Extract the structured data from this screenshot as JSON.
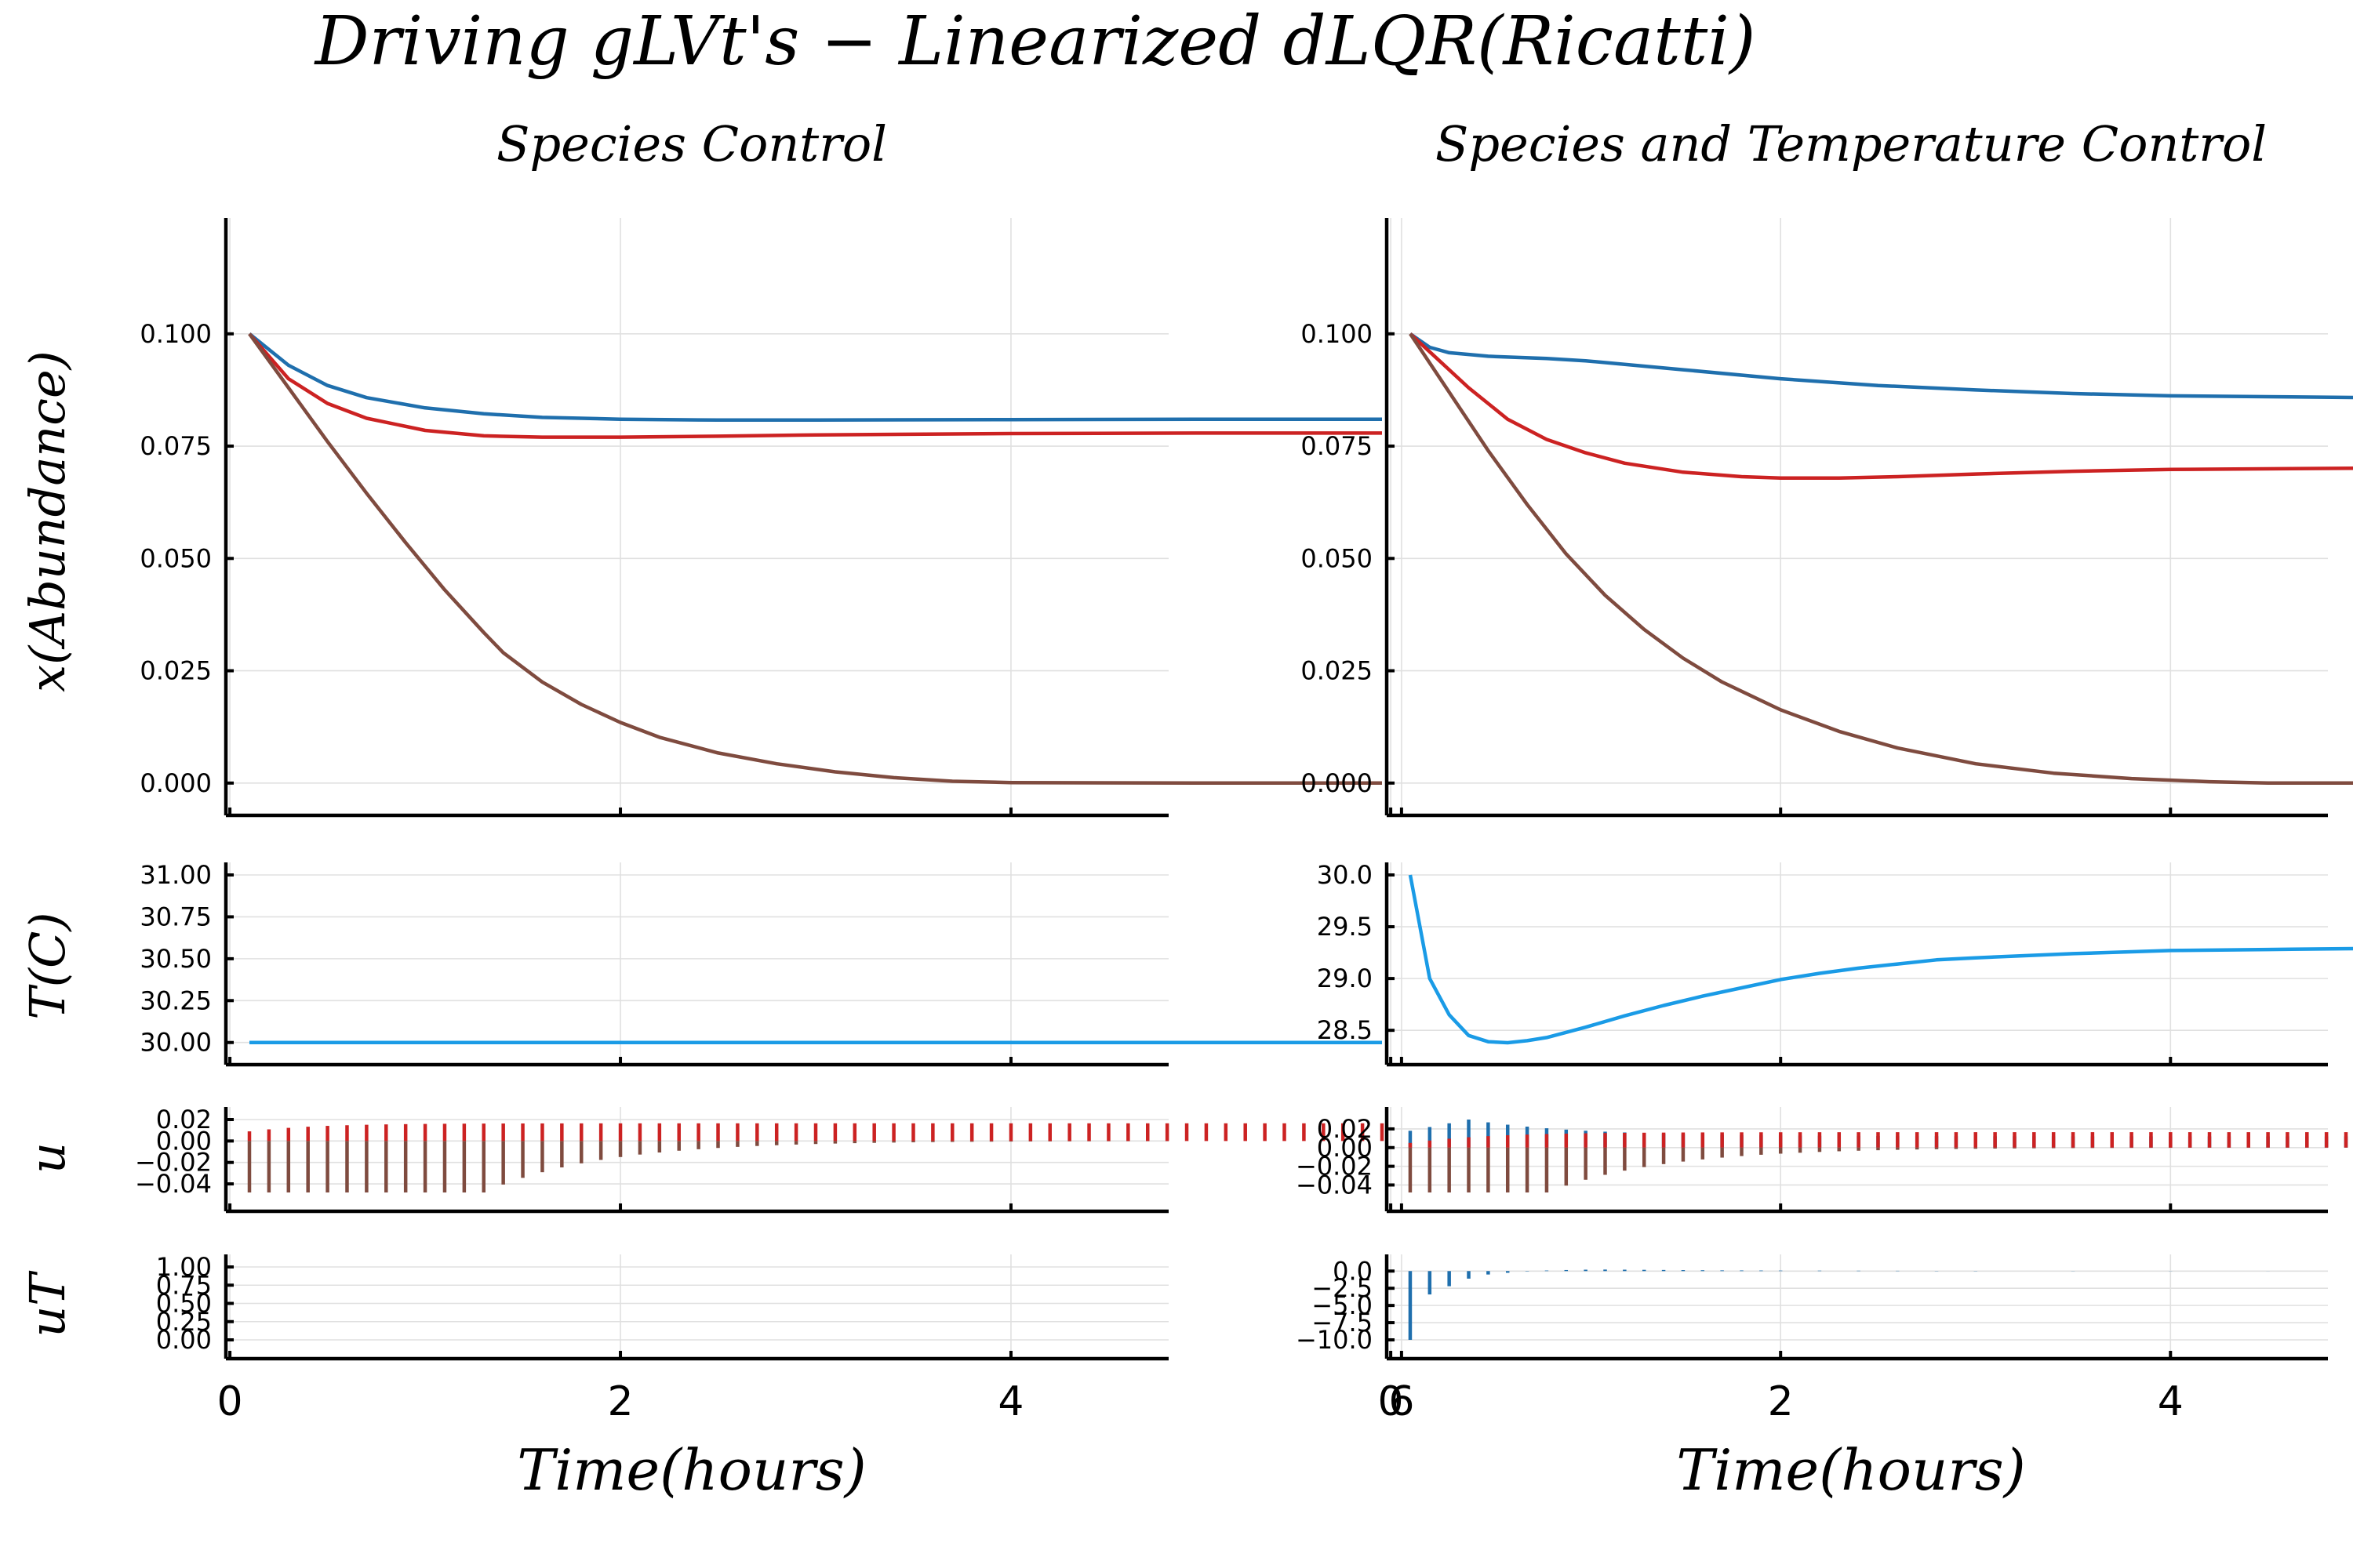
{
  "figure": {
    "title": "Driving gLVt's − Linearized dLQR(Ricatti)"
  },
  "chart_data": [
    {
      "id": "species-abundance",
      "type": "line",
      "title": "Species Control",
      "ylabel": "x(Abundance)",
      "xlabel": "",
      "xlim": [
        0,
        6
      ],
      "ylim": [
        -0.003,
        0.123
      ],
      "x_ticks": [
        0,
        2,
        4,
        6
      ],
      "y_ticks": [
        "0.000",
        "0.025",
        "0.050",
        "0.075",
        "0.100"
      ],
      "y_tick_values": [
        0,
        0.025,
        0.05,
        0.075,
        0.1
      ],
      "grid": true,
      "series": [
        {
          "color": "#1f6fad",
          "x": [
            0.1,
            0.3,
            0.5,
            0.7,
            1.0,
            1.3,
            1.6,
            2.0,
            2.5,
            3.0,
            4.0,
            5.0,
            5.9
          ],
          "y": [
            0.1,
            0.093,
            0.0885,
            0.0858,
            0.0835,
            0.0822,
            0.0814,
            0.081,
            0.0808,
            0.0808,
            0.0809,
            0.081,
            0.081
          ]
        },
        {
          "color": "#cc2222",
          "x": [
            0.1,
            0.3,
            0.5,
            0.7,
            1.0,
            1.3,
            1.6,
            2.0,
            2.5,
            3.0,
            4.0,
            5.0,
            5.9
          ],
          "y": [
            0.1,
            0.09,
            0.0845,
            0.0812,
            0.0785,
            0.0773,
            0.077,
            0.077,
            0.0772,
            0.0775,
            0.0778,
            0.0779,
            0.0779
          ]
        },
        {
          "color": "#7f4b3f",
          "x": [
            0.1,
            0.3,
            0.5,
            0.7,
            0.9,
            1.1,
            1.3,
            1.4,
            1.6,
            1.8,
            2.0,
            2.2,
            2.5,
            2.8,
            3.1,
            3.4,
            3.7,
            4.0,
            5.0,
            5.9
          ],
          "y": [
            0.1,
            0.088,
            0.076,
            0.0645,
            0.0535,
            0.043,
            0.0335,
            0.029,
            0.0225,
            0.0175,
            0.0135,
            0.0102,
            0.0067,
            0.0043,
            0.0025,
            0.0012,
            0.0004,
            0.0001,
            0.0,
            0.0
          ]
        }
      ]
    },
    {
      "id": "species-temp-abundance",
      "type": "line",
      "title": "Species and Temperature Control",
      "ylabel": "",
      "xlabel": "",
      "xlim": [
        0,
        6
      ],
      "ylim": [
        -0.003,
        0.123
      ],
      "x_ticks": [
        0,
        2,
        4,
        6
      ],
      "y_ticks": [
        "0.000",
        "0.025",
        "0.050",
        "0.075",
        "0.100"
      ],
      "y_tick_values": [
        0,
        0.025,
        0.05,
        0.075,
        0.1
      ],
      "grid": true,
      "series": [
        {
          "color": "#1f6fad",
          "x": [
            0.1,
            0.2,
            0.3,
            0.5,
            0.8,
            1.0,
            1.5,
            2.0,
            2.5,
            3.0,
            3.5,
            4.0,
            4.5,
            5.0,
            5.5,
            5.9
          ],
          "y": [
            0.1,
            0.097,
            0.0958,
            0.095,
            0.0945,
            0.094,
            0.092,
            0.09,
            0.0885,
            0.0875,
            0.0867,
            0.0862,
            0.086,
            0.0858,
            0.0857,
            0.0857
          ]
        },
        {
          "color": "#cc2222",
          "x": [
            0.1,
            0.2,
            0.4,
            0.6,
            0.8,
            1.0,
            1.2,
            1.5,
            1.8,
            2.0,
            2.3,
            2.6,
            3.0,
            3.5,
            4.0,
            5.0,
            5.9
          ],
          "y": [
            0.1,
            0.096,
            0.088,
            0.081,
            0.0765,
            0.0735,
            0.0712,
            0.0692,
            0.0682,
            0.0679,
            0.0679,
            0.0682,
            0.0688,
            0.0694,
            0.0698,
            0.0701,
            0.0701
          ]
        },
        {
          "color": "#7f4b3f",
          "x": [
            0.1,
            0.3,
            0.5,
            0.7,
            0.9,
            1.1,
            1.3,
            1.5,
            1.7,
            2.0,
            2.3,
            2.6,
            3.0,
            3.4,
            3.8,
            4.2,
            4.5,
            5.0,
            5.9
          ],
          "y": [
            0.1,
            0.087,
            0.074,
            0.062,
            0.051,
            0.0418,
            0.0342,
            0.0278,
            0.0225,
            0.0163,
            0.0115,
            0.0078,
            0.0043,
            0.0022,
            0.001,
            0.0003,
            0.0,
            0.0,
            0.0
          ]
        }
      ]
    },
    {
      "id": "species-temperature",
      "type": "line",
      "title": "",
      "ylabel": "T(C)",
      "xlabel": "",
      "xlim": [
        0,
        6
      ],
      "ylim": [
        29.98,
        31.0
      ],
      "x_ticks": [
        0,
        2,
        4,
        6
      ],
      "y_ticks": [
        "30.00",
        "30.25",
        "30.50",
        "30.75",
        "31.00"
      ],
      "y_tick_values": [
        30.0,
        30.25,
        30.5,
        30.75,
        31.0
      ],
      "grid": true,
      "series": [
        {
          "color": "#1a9be6",
          "x": [
            0.1,
            5.9
          ],
          "y": [
            30.0,
            30.0
          ]
        }
      ]
    },
    {
      "id": "species-temp-temperature",
      "type": "line",
      "title": "",
      "ylabel": "",
      "xlabel": "",
      "xlim": [
        0,
        6
      ],
      "ylim": [
        28.35,
        30.0
      ],
      "x_ticks": [
        0,
        2,
        4,
        6
      ],
      "y_ticks": [
        "28.5",
        "29.0",
        "29.5",
        "30.0"
      ],
      "y_tick_values": [
        28.5,
        29.0,
        29.5,
        30.0
      ],
      "grid": true,
      "series": [
        {
          "color": "#1a9be6",
          "x": [
            0.1,
            0.2,
            0.3,
            0.4,
            0.5,
            0.6,
            0.7,
            0.8,
            1.0,
            1.2,
            1.4,
            1.6,
            1.8,
            2.0,
            2.2,
            2.4,
            2.6,
            2.8,
            3.0,
            3.5,
            4.0,
            4.5,
            5.0,
            5.5,
            5.9
          ],
          "y": [
            30.0,
            29.0,
            28.65,
            28.45,
            28.39,
            28.38,
            28.4,
            28.43,
            28.53,
            28.64,
            28.74,
            28.83,
            28.91,
            28.99,
            29.05,
            29.1,
            29.14,
            29.18,
            29.2,
            29.24,
            29.27,
            29.28,
            29.29,
            29.29,
            29.3
          ]
        }
      ]
    },
    {
      "id": "species-u",
      "type": "bar",
      "title": "",
      "ylabel": "u",
      "xlabel": "",
      "xlim": [
        0,
        6
      ],
      "ylim": [
        -0.048,
        0.02
      ],
      "x_ticks": [
        0,
        2,
        4,
        6
      ],
      "y_ticks": [
        "−0.04",
        "−0.02",
        "0.00",
        "0.02"
      ],
      "y_tick_values": [
        -0.04,
        -0.02,
        0.0,
        0.02
      ],
      "grid": true,
      "series": [
        {
          "color": "#7f4b3f",
          "t_start": 0.1,
          "t_end": 5.9,
          "dt": 0.1,
          "kind": "decay",
          "v0": -0.048,
          "hold_until": 1.3,
          "tau": 0.6
        },
        {
          "color": "#cc2222",
          "t_start": 0.1,
          "t_end": 5.9,
          "dt": 0.1,
          "kind": "rise",
          "v0": 0.009,
          "v1": 0.0165,
          "tau": 0.35
        }
      ]
    },
    {
      "id": "species-temp-u",
      "type": "bar",
      "title": "",
      "ylabel": "",
      "xlabel": "",
      "xlim": [
        0,
        6
      ],
      "ylim": [
        -0.048,
        0.03
      ],
      "x_ticks": [
        0,
        2,
        4,
        6
      ],
      "y_ticks": [
        "−0.04",
        "−0.02",
        "0.00",
        "0.02"
      ],
      "y_tick_values": [
        -0.04,
        -0.02,
        0.0,
        0.02
      ],
      "grid": true,
      "series": [
        {
          "color": "#1f6fad",
          "t_start": 0.1,
          "t_end": 5.9,
          "dt": 0.1,
          "kind": "peak",
          "v0": 0.018,
          "vpeak": 0.03,
          "tpeak": 0.4,
          "v1": 0.012,
          "tau": 0.55
        },
        {
          "color": "#7f4b3f",
          "t_start": 0.1,
          "t_end": 5.9,
          "dt": 0.1,
          "kind": "decay",
          "v0": -0.048,
          "hold_until": 0.8,
          "tau": 0.6
        },
        {
          "color": "#cc2222",
          "t_start": 0.1,
          "t_end": 5.9,
          "dt": 0.1,
          "kind": "rise",
          "v0": 0.005,
          "v1": 0.0165,
          "tau": 0.4
        }
      ]
    },
    {
      "id": "species-uT",
      "type": "bar",
      "title": "",
      "ylabel": "uT",
      "xlabel": "Time(hours)",
      "xlim": [
        0,
        6
      ],
      "ylim": [
        0.0,
        1.0
      ],
      "x_ticks": [
        0,
        2,
        4,
        6
      ],
      "y_ticks": [
        "0.00",
        "0.25",
        "0.50",
        "0.75",
        "1.00"
      ],
      "y_tick_values": [
        0,
        0.25,
        0.5,
        0.75,
        1.0
      ],
      "grid": true,
      "series": []
    },
    {
      "id": "species-temp-uT",
      "type": "bar",
      "title": "",
      "ylabel": "",
      "xlabel": "Time(hours)",
      "xlim": [
        0,
        6
      ],
      "ylim": [
        -10.0,
        0.6
      ],
      "x_ticks": [
        0,
        2,
        4,
        6
      ],
      "y_ticks": [
        "−10.0",
        "−7.5",
        "−5.0",
        "−2.5",
        "0.0"
      ],
      "y_tick_values": [
        -10.0,
        -7.5,
        -5.0,
        -2.5,
        0.0
      ],
      "grid": true,
      "series": [
        {
          "color": "#1f6fad",
          "t": [
            0.1,
            0.2,
            0.3,
            0.4,
            0.5,
            0.6,
            0.7,
            0.8,
            0.9,
            1.0,
            1.1,
            1.2,
            1.3,
            1.4,
            1.5,
            1.6,
            1.7,
            1.8,
            1.9,
            2.0,
            2.2,
            2.4,
            2.6,
            2.8,
            3.0,
            3.5,
            4.0,
            4.5,
            5.0,
            5.5,
            5.9
          ],
          "v": [
            -10.0,
            -3.4,
            -2.2,
            -1.1,
            -0.5,
            -0.25,
            -0.05,
            0.08,
            0.15,
            0.2,
            0.22,
            0.2,
            0.18,
            0.16,
            0.14,
            0.12,
            0.1,
            0.09,
            0.08,
            0.07,
            0.06,
            0.05,
            0.04,
            0.03,
            0.03,
            0.02,
            0.02,
            0.01,
            0.01,
            0.01,
            0.01
          ]
        }
      ]
    }
  ]
}
